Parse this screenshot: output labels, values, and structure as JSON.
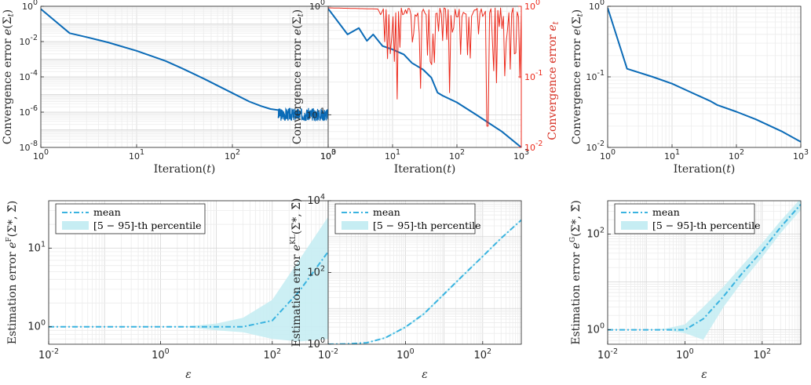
{
  "colors": {
    "blue": "#0b6bb7",
    "red": "#ec2a1c",
    "mean": "#3ab3e0",
    "band": "#c6edf3",
    "grid": "#e3e3e3"
  },
  "chart_data": [
    {
      "type": "line",
      "id": "p1",
      "xlabel": "Iteration(t)",
      "ylabel": "Convergence error e(Σt)",
      "xscale": "log",
      "yscale": "log",
      "xlim": [
        1,
        1000
      ],
      "ylim": [
        1e-08,
        1
      ],
      "xticks": [
        {
          "v": 1,
          "label": "10^0"
        },
        {
          "v": 10,
          "label": "10^1"
        },
        {
          "v": 100,
          "label": "10^2"
        },
        {
          "v": 1000,
          "label": "10^3"
        }
      ],
      "yticks": [
        {
          "v": 1e-08,
          "label": "10^-8"
        },
        {
          "v": 1e-06,
          "label": "10^-6"
        },
        {
          "v": 0.0001,
          "label": "10^-4"
        },
        {
          "v": 0.01,
          "label": "10^-2"
        },
        {
          "v": 1,
          "label": "10^0"
        }
      ],
      "grid": true,
      "series": [
        {
          "color": "#0b6bb7",
          "x": [
            1,
            2,
            3,
            5,
            10,
            20,
            30,
            50,
            100,
            150,
            200,
            250,
            300
          ],
          "y": [
            0.7,
            0.03,
            0.018,
            0.009,
            0.003,
            0.0008,
            0.0003,
            8e-05,
            1.2e-05,
            4e-06,
            2.2e-06,
            1.5e-06,
            1.3e-06
          ],
          "noise_from": 300,
          "noise_to": 1000,
          "noise_lo": 3.2e-07,
          "noise_hi": 1.7e-06
        }
      ]
    },
    {
      "type": "line",
      "id": "p2",
      "xlabel": "Iteration(t)",
      "ylabel": "Convergence error e(Σt)",
      "y2label": "Convergence error et",
      "xscale": "log",
      "yscale": "log",
      "xlim": [
        1,
        1000
      ],
      "ylim": [
        0.05,
        1
      ],
      "y2lim": [
        0.01,
        1
      ],
      "xticks": [
        {
          "v": 1,
          "label": "10^0"
        },
        {
          "v": 10,
          "label": "10^1"
        },
        {
          "v": 100,
          "label": "10^2"
        },
        {
          "v": 1000,
          "label": "10^3"
        }
      ],
      "yticks": [
        {
          "v": 0.1,
          "label": "10^-1"
        },
        {
          "v": 1,
          "label": "10^0"
        }
      ],
      "y2ticks": [
        {
          "v": 0.01,
          "label": "10^-2"
        },
        {
          "v": 0.1,
          "label": "10^-1"
        },
        {
          "v": 1,
          "label": "10^0"
        }
      ],
      "grid": true,
      "series": [
        {
          "color": "#0b6bb7",
          "axis": "left",
          "x": [
            1,
            2,
            3,
            4,
            5,
            7,
            10,
            15,
            20,
            30,
            40,
            50,
            60,
            100,
            200,
            500,
            1000
          ],
          "y": [
            0.95,
            0.55,
            0.63,
            0.48,
            0.55,
            0.43,
            0.4,
            0.36,
            0.3,
            0.26,
            0.22,
            0.16,
            0.15,
            0.13,
            0.1,
            0.07,
            0.05
          ]
        },
        {
          "color": "#ec2a1c",
          "axis": "right",
          "x": [
            1,
            3,
            5,
            7,
            8,
            10,
            12,
            15,
            20,
            30,
            50,
            100,
            200,
            300,
            500,
            1000
          ],
          "y": [
            0.95,
            0.9,
            0.85,
            0.7,
            0.25,
            0.75,
            0.5,
            0.78,
            0.4,
            0.8,
            0.3,
            0.75,
            0.2,
            0.02,
            0.06,
            0.5
          ]
        }
      ]
    },
    {
      "type": "line",
      "id": "p3",
      "xlabel": "Iteration(t)",
      "ylabel": "Convergence error e(Σt)",
      "xscale": "log",
      "yscale": "log",
      "xlim": [
        1,
        1000
      ],
      "ylim": [
        0.01,
        1
      ],
      "xticks": [
        {
          "v": 1,
          "label": "10^0"
        },
        {
          "v": 10,
          "label": "10^1"
        },
        {
          "v": 100,
          "label": "10^2"
        },
        {
          "v": 1000,
          "label": "10^3"
        }
      ],
      "yticks": [
        {
          "v": 0.01,
          "label": "10^-2"
        },
        {
          "v": 0.1,
          "label": "10^-1"
        },
        {
          "v": 1,
          "label": "10^0"
        }
      ],
      "grid": true,
      "series": [
        {
          "color": "#0b6bb7",
          "x": [
            1,
            2,
            5,
            10,
            20,
            40,
            50,
            100,
            200,
            500,
            1000
          ],
          "y": [
            0.95,
            0.13,
            0.1,
            0.08,
            0.06,
            0.045,
            0.04,
            0.032,
            0.025,
            0.017,
            0.012
          ]
        }
      ]
    },
    {
      "type": "area",
      "id": "p4",
      "xlabel": "ε",
      "ylabel": "Estimation error e^F(Σ*, Σ̂)",
      "xscale": "log",
      "yscale": "log",
      "xlim": [
        0.01,
        1000
      ],
      "ylim": [
        0.6,
        40
      ],
      "xticks": [
        {
          "v": 0.01,
          "label": "10^-2"
        },
        {
          "v": 1,
          "label": "10^0"
        },
        {
          "v": 100,
          "label": "10^2"
        }
      ],
      "yticks": [
        {
          "v": 1,
          "label": "10^0"
        },
        {
          "v": 10,
          "label": "10^1"
        }
      ],
      "grid": true,
      "legend": {
        "position": "top-left",
        "mean": "mean",
        "band": "[5 − 95]-th percentile"
      },
      "x": [
        0.01,
        0.03,
        0.1,
        0.3,
        1,
        3,
        10,
        30,
        100,
        300,
        1000
      ],
      "mean": [
        1,
        1,
        1,
        1,
        1,
        1,
        1,
        1,
        1.2,
        2.8,
        9
      ],
      "p5": [
        1,
        1,
        1,
        1,
        1,
        0.99,
        0.9,
        0.85,
        0.7,
        0.65,
        0.7
      ],
      "p95": [
        1,
        1,
        1,
        1,
        1,
        1.01,
        1.1,
        1.3,
        2.2,
        7,
        25
      ]
    },
    {
      "type": "area",
      "id": "p5",
      "xlabel": "ε",
      "ylabel": "Estimation error e^KL(Σ*, Σ̂)",
      "xscale": "log",
      "yscale": "log",
      "xlim": [
        0.01,
        1000
      ],
      "ylim": [
        1,
        10000
      ],
      "xticks": [
        {
          "v": 0.01,
          "label": "10^-2"
        },
        {
          "v": 1,
          "label": "10^0"
        },
        {
          "v": 100,
          "label": "10^2"
        }
      ],
      "yticks": [
        {
          "v": 1,
          "label": "10^0"
        },
        {
          "v": 100,
          "label": "10^2"
        },
        {
          "v": 10000,
          "label": "10^4"
        }
      ],
      "grid": true,
      "legend": {
        "position": "top-left",
        "mean": "mean",
        "band": "[5 − 95]-th percentile"
      },
      "x": [
        0.01,
        0.03,
        0.1,
        0.3,
        1,
        3,
        10,
        30,
        100,
        300,
        1000
      ],
      "mean": [
        1,
        1.02,
        1.1,
        1.5,
        3,
        7,
        25,
        80,
        280,
        900,
        2900
      ],
      "p5": [
        1,
        1.01,
        1.08,
        1.45,
        2.8,
        6.5,
        23,
        75,
        265,
        860,
        2800
      ],
      "p95": [
        1,
        1.03,
        1.12,
        1.6,
        3.2,
        7.6,
        27,
        86,
        300,
        950,
        3050
      ]
    },
    {
      "type": "area",
      "id": "p6",
      "xlabel": "ε",
      "ylabel": "Estimation error e^G(Σ*, Σ̂)",
      "xscale": "log",
      "yscale": "log",
      "xlim": [
        0.01,
        1000
      ],
      "ylim": [
        0.5,
        500
      ],
      "xticks": [
        {
          "v": 0.01,
          "label": "10^-2"
        },
        {
          "v": 1,
          "label": "10^0"
        },
        {
          "v": 100,
          "label": "10^2"
        }
      ],
      "yticks": [
        {
          "v": 1,
          "label": "10^0"
        },
        {
          "v": 100,
          "label": "10^2"
        }
      ],
      "grid": true,
      "legend": {
        "position": "top-left",
        "mean": "mean",
        "band": "[5 − 95]-th percentile"
      },
      "x": [
        0.01,
        0.03,
        0.1,
        0.3,
        1,
        3,
        10,
        30,
        100,
        300,
        1000
      ],
      "mean": [
        1,
        1,
        1,
        1,
        1,
        1.7,
        5,
        15,
        45,
        140,
        420
      ],
      "p5": [
        1,
        1,
        1,
        1,
        0.85,
        0.62,
        3,
        10,
        33,
        105,
        320
      ],
      "p95": [
        1,
        1,
        1,
        1.05,
        1.3,
        3,
        8,
        22,
        65,
        190,
        560
      ]
    }
  ]
}
